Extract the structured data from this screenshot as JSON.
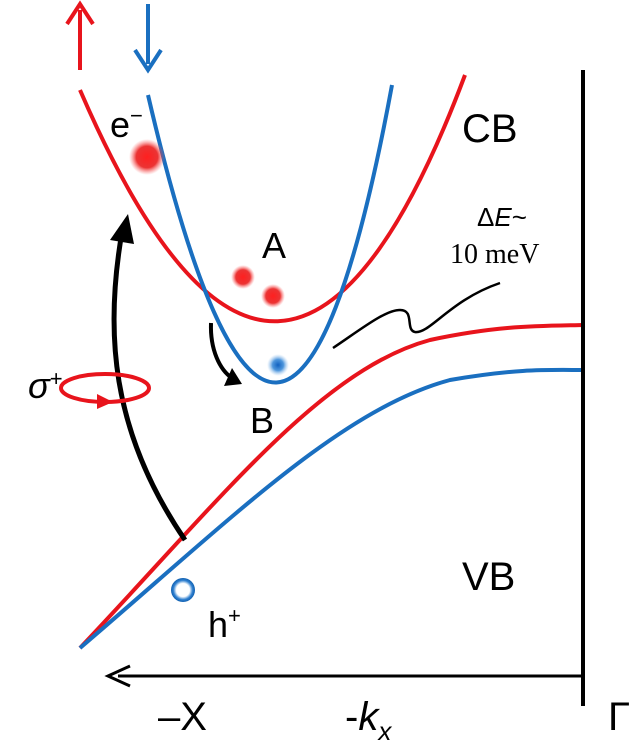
{
  "bands": {
    "conduction": "CB",
    "valence": "VB"
  },
  "valleys": {
    "upper": "A",
    "lower": "B"
  },
  "carriers": {
    "electron": {
      "symbol": "e",
      "charge": "−"
    },
    "hole": {
      "symbol": "h",
      "charge": "+"
    }
  },
  "splitting": {
    "delta": "Δ",
    "symbol": "E",
    "tilde": "~",
    "value": "10 meV"
  },
  "excitation": {
    "symbol": "σ",
    "helicity": "+"
  },
  "axis": {
    "sign": "-",
    "symbol": "k",
    "subscript": "x",
    "left": "–X",
    "right": "Γ"
  }
}
